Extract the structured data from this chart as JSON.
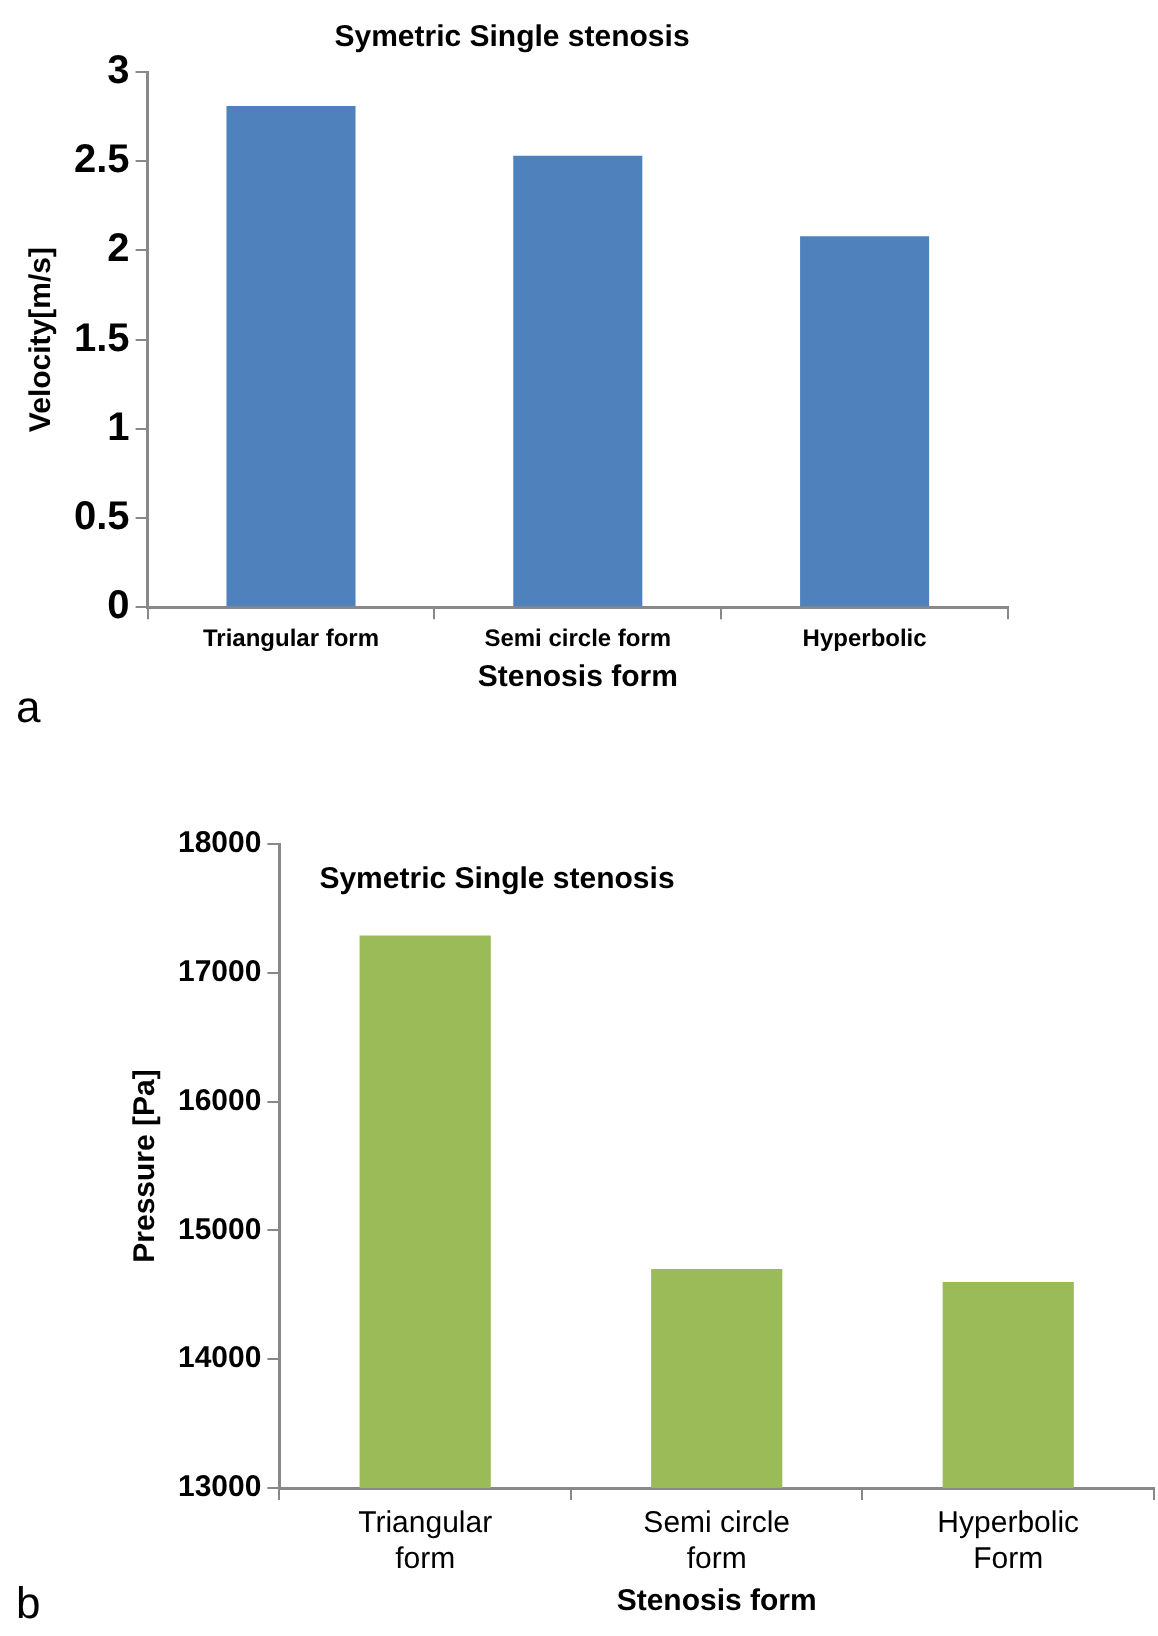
{
  "chart_data": [
    {
      "type": "bar",
      "title": "Symetric Single stenosis",
      "xlabel": "Stenosis form",
      "ylabel": "Velocity[m/s]",
      "categories": [
        "Triangular form",
        "Semi circle form",
        "Hyperbolic"
      ],
      "values": [
        2.81,
        2.53,
        2.08
      ],
      "color": "#4f81bd",
      "ylim": [
        0,
        3
      ],
      "yticks": [
        0,
        0.5,
        1,
        1.5,
        2,
        2.5,
        3
      ],
      "grid": false,
      "legend": false,
      "annotations": [
        "a"
      ]
    },
    {
      "type": "bar",
      "title": "Symetric Single stenosis",
      "xlabel": "Stenosis form",
      "ylabel": "Pressure [Pa]",
      "categories": [
        "Triangular form",
        "Semi circle form",
        "Hyperbolic Form"
      ],
      "values": [
        17290,
        14700,
        14600
      ],
      "color": "#9bbb59",
      "ylim": [
        13000,
        18000
      ],
      "yticks": [
        13000,
        14000,
        15000,
        16000,
        17000,
        18000
      ],
      "grid": false,
      "legend": false,
      "annotations": [
        "b"
      ]
    }
  ]
}
